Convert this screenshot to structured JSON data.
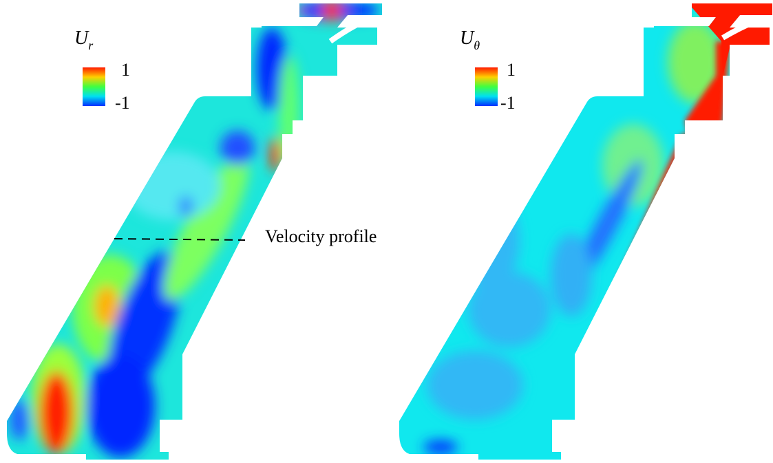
{
  "panels": [
    {
      "symbol": "U",
      "subscript": "r",
      "colorbar": {
        "max_label": "1",
        "min_label": "-1"
      },
      "annotation": "Velocity profile"
    },
    {
      "symbol": "U",
      "subscript": "θ",
      "colorbar": {
        "max_label": "1",
        "min_label": "-1"
      }
    }
  ]
}
